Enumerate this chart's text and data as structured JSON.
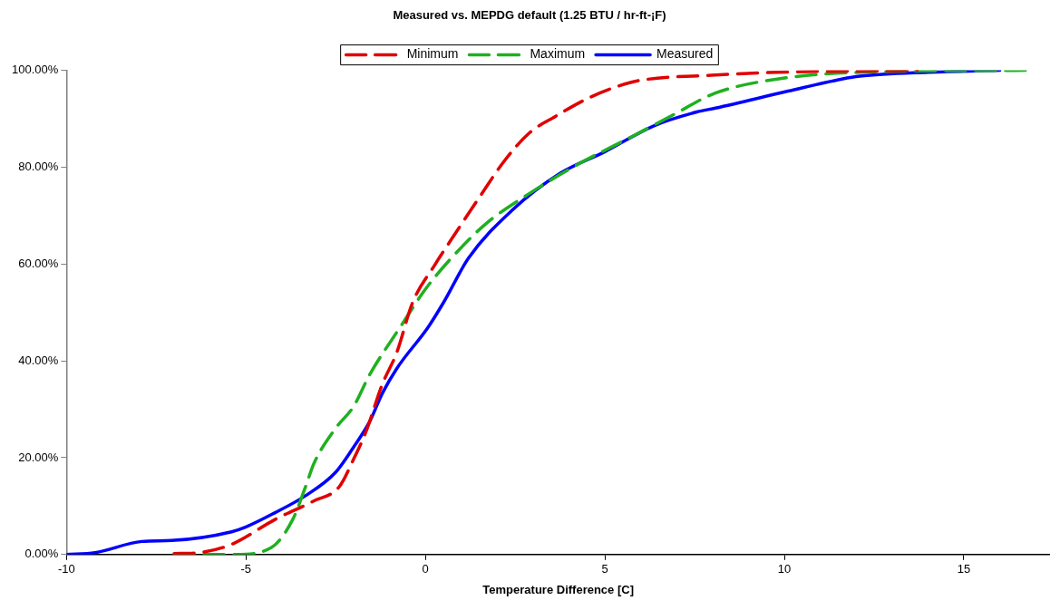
{
  "chart_data": {
    "type": "line",
    "title": "Measured vs. MEPDG default (1.25 BTU / hr-ft-¡F)",
    "xlabel": "Temperature Difference [C]",
    "xlim": [
      -10,
      17.4
    ],
    "xticks": [
      -10,
      -5,
      0,
      5,
      10,
      15
    ],
    "ylim": [
      0,
      100
    ],
    "yticks": [
      {
        "value": 0,
        "label": "0.00%"
      },
      {
        "value": 20,
        "label": "20.00%"
      },
      {
        "value": 40,
        "label": "40.00%"
      },
      {
        "value": 60,
        "label": "60.00%"
      },
      {
        "value": 80,
        "label": "80.00%"
      },
      {
        "value": 100,
        "label": "100.00%"
      }
    ],
    "grid": false,
    "legend": "top",
    "marker": "none",
    "series": [
      {
        "name": "Minimum",
        "color": "#e00000",
        "line_style": "dashed",
        "x": [
          -7,
          -6.3,
          -5.4,
          -4.2,
          -3.1,
          -2.4,
          -2,
          -1.65,
          -1.2,
          -0.8,
          -0.36,
          0.26,
          0.85,
          1.55,
          2.2,
          2.9,
          3.6,
          4.55,
          5.4,
          5.96,
          7.97,
          10.3,
          13.06,
          13.7
        ],
        "values": [
          0.2,
          0.4,
          2.1,
          7.2,
          11.1,
          14,
          19.7,
          25.5,
          35.2,
          41.7,
          52,
          59.8,
          66.5,
          74.3,
          81.3,
          87.1,
          90.4,
          94.3,
          96.8,
          97.9,
          99,
          99.7,
          99.9,
          100
        ]
      },
      {
        "name": "Maximum",
        "color": "#20b020",
        "line_style": "dashed",
        "x": [
          -7,
          -5.3,
          -4.3,
          -3.7,
          -3.35,
          -3.1,
          -2.5,
          -2,
          -1.55,
          -0.7,
          0,
          0.67,
          1.7,
          2.84,
          4.13,
          5.8,
          6.9,
          8.08,
          9.8,
          12.1,
          16.75
        ],
        "values": [
          0,
          0,
          1.4,
          7.2,
          13.8,
          18.9,
          26.1,
          30.6,
          37.2,
          47,
          54.8,
          60.8,
          68.4,
          74.3,
          80.1,
          86.5,
          90.8,
          95.3,
          98.2,
          99.6,
          100
        ]
      },
      {
        "name": "Measured",
        "color": "#0000ff",
        "line_style": "solid",
        "x": [
          -10,
          -9.2,
          -7.9,
          -7.07,
          -5.4,
          -5,
          -4.2,
          -3.35,
          -2.5,
          -2,
          -1.55,
          -1.2,
          -0.8,
          0.08,
          0.5,
          1.2,
          2.4,
          3.77,
          5,
          6.35,
          7.56,
          8.08,
          10.1,
          11.6,
          12.1,
          14,
          16
        ],
        "values": [
          0,
          0.4,
          2.7,
          2.9,
          4.7,
          5.7,
          8.6,
          12.1,
          17,
          22.2,
          27.5,
          33.3,
          38.4,
          47,
          52,
          61.2,
          71,
          78.8,
          83.2,
          88.5,
          91.4,
          92.2,
          95.7,
          98.2,
          98.8,
          99.6,
          100
        ]
      }
    ]
  }
}
